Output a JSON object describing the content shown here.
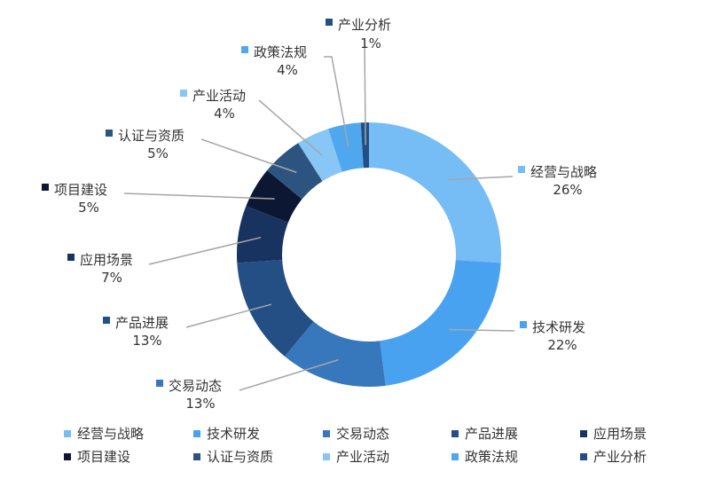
{
  "chart_data": {
    "type": "pie",
    "style": "donut",
    "title": "",
    "categories": [
      "经营与战略",
      "技术研发",
      "交易动态",
      "产品进展",
      "应用场景",
      "项目建设",
      "认证与资质",
      "产业活动",
      "政策法规",
      "产业分析"
    ],
    "values": [
      26,
      22,
      13,
      13,
      7,
      5,
      5,
      4,
      4,
      1
    ],
    "value_labels": [
      "26%",
      "22%",
      "13%",
      "13%",
      "7%",
      "5%",
      "5%",
      "4%",
      "4%",
      "1%"
    ],
    "colors": [
      "#76bcf5",
      "#49a2f0",
      "#3777bb",
      "#234f84",
      "#18335f",
      "#0c1733",
      "#2d5481",
      "#87c6f5",
      "#4fa8ee",
      "#234f84"
    ],
    "legend_position": "bottom"
  }
}
